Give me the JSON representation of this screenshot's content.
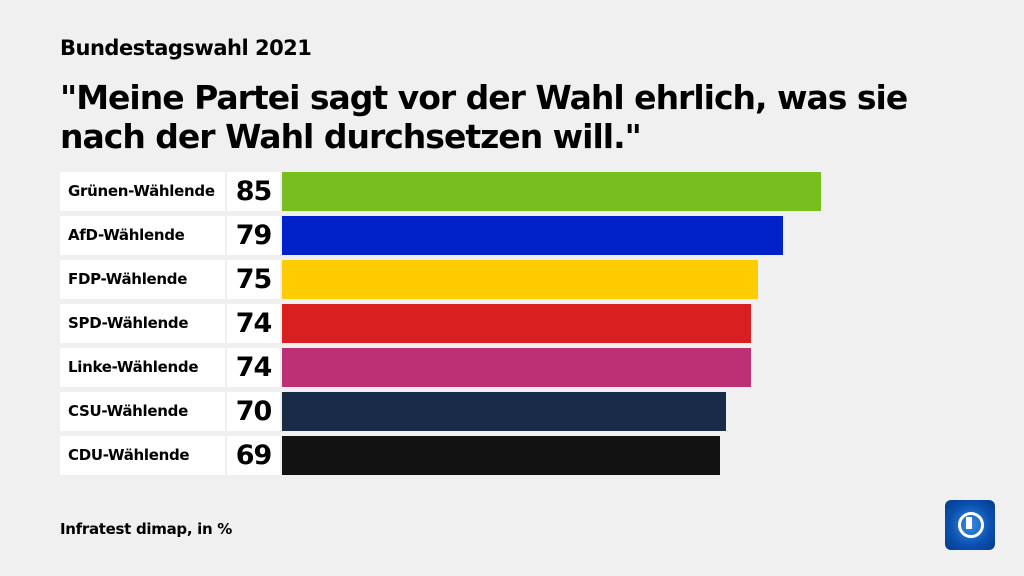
{
  "header": {
    "subtitle": "Bundestagswahl 2021",
    "title": "\"Meine Partei sagt vor der Wahl ehrlich, was sie nach der Wahl durchsetzen will.\""
  },
  "footer": {
    "source": "Infratest dimap, in %",
    "logo": "tagesschau-logo-icon"
  },
  "chart_data": {
    "type": "bar",
    "orientation": "horizontal",
    "title": "\"Meine Partei sagt vor der Wahl ehrlich, was sie nach der Wahl durchsetzen will.\"",
    "categories": [
      "Grünen-Wählende",
      "AfD-Wählende",
      "FDP-Wählende",
      "SPD-Wählende",
      "Linke-Wählende",
      "CSU-Wählende",
      "CDU-Wählende"
    ],
    "values": [
      85,
      79,
      75,
      74,
      74,
      70,
      69
    ],
    "colors": [
      "#78be1e",
      "#0021c8",
      "#ffcc00",
      "#d92020",
      "#be3075",
      "#1a2b48",
      "#121212"
    ],
    "xlim": [
      0,
      85
    ],
    "grid": false,
    "legend": "none"
  }
}
